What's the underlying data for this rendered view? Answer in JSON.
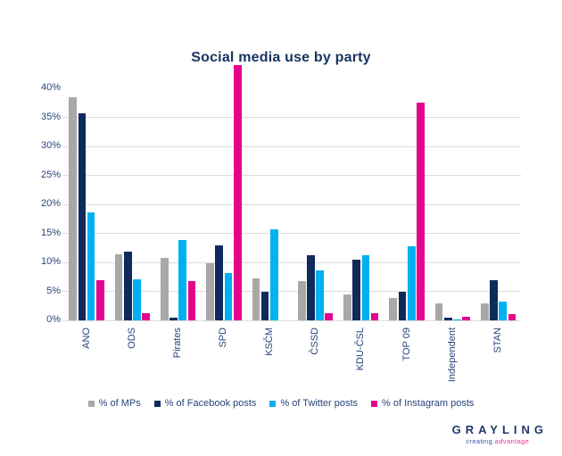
{
  "title": "Social media use by party",
  "colors": {
    "bar_gray": "#a8a8a8",
    "bar_navy": "#0f2b5b",
    "bar_cyan": "#00b0f0",
    "bar_magenta": "#e5048c",
    "gridline": "#dcdcdc",
    "axis_text": "#28437a",
    "title_text": "#17355f"
  },
  "chart_data": {
    "type": "bar",
    "title": "Social media use by party",
    "xlabel": "",
    "ylabel": "",
    "ylim": [
      0,
      44
    ],
    "grid": "horizontal",
    "legend_position": "bottom",
    "categories": [
      "ANO",
      "ODS",
      "Pirates",
      "SPD",
      "KSČM",
      "ČSSD",
      "KDU-ČSL",
      "TOP 09",
      "Independent",
      "STAN"
    ],
    "series": [
      {
        "name": "% of MPs",
        "color": "#a8a8a8",
        "values": [
          38.5,
          11.4,
          10.8,
          9.9,
          7.3,
          6.8,
          4.4,
          3.8,
          2.9,
          3.0
        ]
      },
      {
        "name": "% of Facebook posts",
        "color": "#0f2b5b",
        "values": [
          35.7,
          11.9,
          0.4,
          12.9,
          4.9,
          11.2,
          10.4,
          4.9,
          0.4,
          7.0
        ]
      },
      {
        "name": "% of Twitter posts",
        "color": "#00b0f0",
        "values": [
          18.6,
          7.1,
          13.9,
          8.2,
          15.7,
          8.6,
          11.3,
          12.7,
          0.2,
          3.2
        ]
      },
      {
        "name": "% of Instagram posts",
        "color": "#e5048c",
        "values": [
          6.9,
          1.3,
          6.8,
          44.0,
          0,
          1.2,
          1.2,
          37.6,
          0.6,
          1.1
        ]
      }
    ],
    "y_axis": {
      "ticks": [
        {
          "label": "40%",
          "value": 40
        },
        {
          "label": "35%",
          "value": 35
        },
        {
          "label": "30%",
          "value": 30
        },
        {
          "label": "25%",
          "value": 25
        },
        {
          "label": "20%",
          "value": 20
        },
        {
          "label": "15%",
          "value": 15
        },
        {
          "label": "10%",
          "value": 10
        },
        {
          "label": "5%",
          "value": 5
        },
        {
          "label": "0%",
          "value": 0
        }
      ],
      "gridlines": [
        35,
        30,
        25,
        20,
        15,
        10,
        5,
        0
      ]
    }
  },
  "logo": {
    "name": "GRAYLING",
    "tagline_left": "creating ",
    "tagline_right": "advantage"
  }
}
